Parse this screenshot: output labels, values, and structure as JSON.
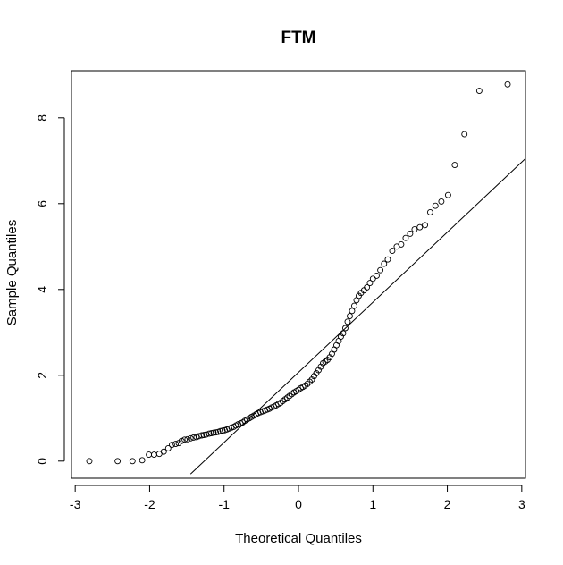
{
  "chart_data": {
    "type": "scatter",
    "title": "FTM",
    "xlabel": "Theoretical Quantiles",
    "ylabel": "Sample Quantiles",
    "xlim": [
      -3.05,
      3.05
    ],
    "ylim": [
      -0.4,
      9.1
    ],
    "x_ticks": [
      -3,
      -2,
      -1,
      0,
      1,
      2,
      3
    ],
    "y_ticks": [
      0,
      2,
      4,
      6,
      8
    ],
    "grid": false,
    "reference_line": {
      "x1": -1.45,
      "y1": -0.3,
      "x2": 3.05,
      "y2": 7.05
    },
    "points": [
      [
        -2.81,
        0.0
      ],
      [
        -2.43,
        0.0
      ],
      [
        -2.23,
        0.0
      ],
      [
        -2.1,
        0.02
      ],
      [
        -2.01,
        0.15
      ],
      [
        -1.94,
        0.15
      ],
      [
        -1.87,
        0.17
      ],
      [
        -1.81,
        0.22
      ],
      [
        -1.75,
        0.3
      ],
      [
        -1.7,
        0.38
      ],
      [
        -1.65,
        0.4
      ],
      [
        -1.61,
        0.42
      ],
      [
        -1.57,
        0.47
      ],
      [
        -1.53,
        0.5
      ],
      [
        -1.49,
        0.51
      ],
      [
        -1.45,
        0.53
      ],
      [
        -1.41,
        0.55
      ],
      [
        -1.37,
        0.56
      ],
      [
        -1.34,
        0.58
      ],
      [
        -1.3,
        0.6
      ],
      [
        -1.27,
        0.61
      ],
      [
        -1.24,
        0.62
      ],
      [
        -1.2,
        0.64
      ],
      [
        -1.17,
        0.65
      ],
      [
        -1.14,
        0.66
      ],
      [
        -1.11,
        0.67
      ],
      [
        -1.08,
        0.68
      ],
      [
        -1.05,
        0.7
      ],
      [
        -1.02,
        0.71
      ],
      [
        -0.99,
        0.72
      ],
      [
        -0.96,
        0.74
      ],
      [
        -0.93,
        0.76
      ],
      [
        -0.9,
        0.78
      ],
      [
        -0.87,
        0.8
      ],
      [
        -0.84,
        0.83
      ],
      [
        -0.81,
        0.86
      ],
      [
        -0.78,
        0.88
      ],
      [
        -0.75,
        0.9
      ],
      [
        -0.72,
        0.94
      ],
      [
        -0.69,
        0.97
      ],
      [
        -0.66,
        1.0
      ],
      [
        -0.63,
        1.03
      ],
      [
        -0.6,
        1.06
      ],
      [
        -0.57,
        1.09
      ],
      [
        -0.54,
        1.12
      ],
      [
        -0.51,
        1.14
      ],
      [
        -0.48,
        1.16
      ],
      [
        -0.45,
        1.18
      ],
      [
        -0.42,
        1.2
      ],
      [
        -0.39,
        1.22
      ],
      [
        -0.36,
        1.25
      ],
      [
        -0.33,
        1.27
      ],
      [
        -0.3,
        1.3
      ],
      [
        -0.27,
        1.33
      ],
      [
        -0.24,
        1.36
      ],
      [
        -0.21,
        1.4
      ],
      [
        -0.18,
        1.44
      ],
      [
        -0.15,
        1.48
      ],
      [
        -0.12,
        1.52
      ],
      [
        -0.09,
        1.56
      ],
      [
        -0.06,
        1.6
      ],
      [
        -0.03,
        1.63
      ],
      [
        0.0,
        1.66
      ],
      [
        0.03,
        1.7
      ],
      [
        0.06,
        1.73
      ],
      [
        0.09,
        1.76
      ],
      [
        0.12,
        1.8
      ],
      [
        0.15,
        1.85
      ],
      [
        0.18,
        1.9
      ],
      [
        0.21,
        1.98
      ],
      [
        0.24,
        2.05
      ],
      [
        0.27,
        2.12
      ],
      [
        0.3,
        2.2
      ],
      [
        0.33,
        2.28
      ],
      [
        0.36,
        2.32
      ],
      [
        0.39,
        2.36
      ],
      [
        0.42,
        2.42
      ],
      [
        0.45,
        2.5
      ],
      [
        0.48,
        2.6
      ],
      [
        0.51,
        2.7
      ],
      [
        0.54,
        2.8
      ],
      [
        0.57,
        2.9
      ],
      [
        0.6,
        2.98
      ],
      [
        0.63,
        3.1
      ],
      [
        0.66,
        3.25
      ],
      [
        0.69,
        3.38
      ],
      [
        0.72,
        3.5
      ],
      [
        0.75,
        3.62
      ],
      [
        0.78,
        3.75
      ],
      [
        0.81,
        3.85
      ],
      [
        0.84,
        3.92
      ],
      [
        0.88,
        3.98
      ],
      [
        0.92,
        4.05
      ],
      [
        0.96,
        4.15
      ],
      [
        1.0,
        4.25
      ],
      [
        1.05,
        4.32
      ],
      [
        1.1,
        4.45
      ],
      [
        1.15,
        4.6
      ],
      [
        1.2,
        4.7
      ],
      [
        1.26,
        4.9
      ],
      [
        1.32,
        5.0
      ],
      [
        1.38,
        5.05
      ],
      [
        1.44,
        5.2
      ],
      [
        1.5,
        5.3
      ],
      [
        1.56,
        5.4
      ],
      [
        1.63,
        5.45
      ],
      [
        1.7,
        5.5
      ],
      [
        1.77,
        5.8
      ],
      [
        1.84,
        5.95
      ],
      [
        1.92,
        6.05
      ],
      [
        2.01,
        6.2
      ],
      [
        2.1,
        6.9
      ],
      [
        2.23,
        7.62
      ],
      [
        2.43,
        8.63
      ],
      [
        2.81,
        8.78
      ]
    ]
  }
}
